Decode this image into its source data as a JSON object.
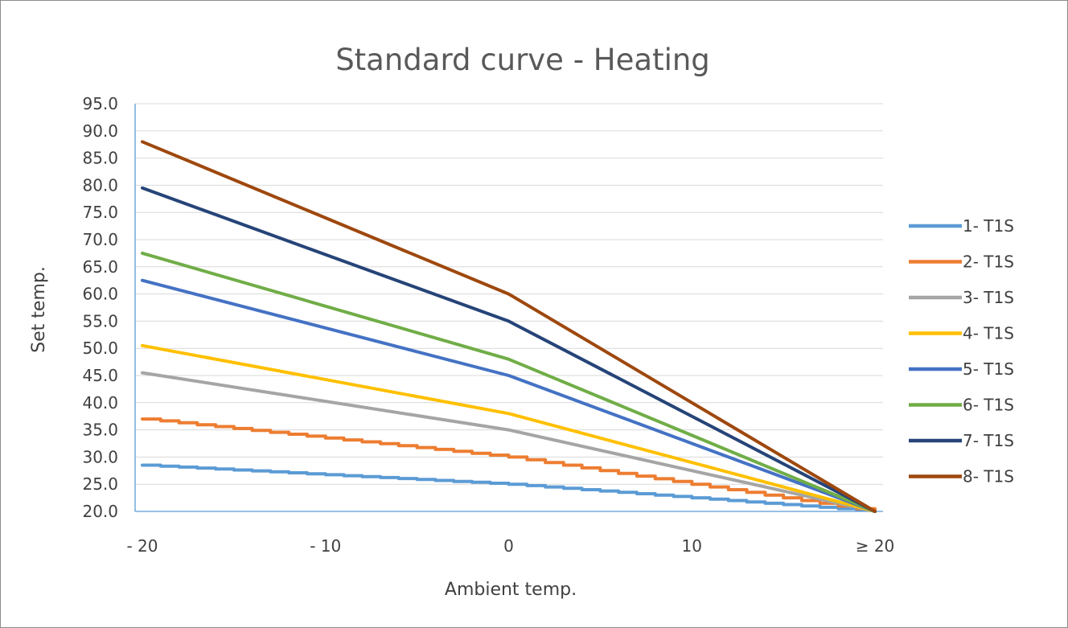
{
  "chart_data": {
    "type": "line",
    "title": "Standard curve -  Heating",
    "xlabel": "Ambient temp.",
    "ylabel": "Set temp.",
    "xlim": [
      -20,
      20
    ],
    "ylim": [
      20.0,
      95.0
    ],
    "x_ticks": [
      {
        "value": -20,
        "label": "- 20"
      },
      {
        "value": -10,
        "label": "- 10"
      },
      {
        "value": 0,
        "label": "0"
      },
      {
        "value": 10,
        "label": "10"
      },
      {
        "value": 20,
        "label": "≥ 20"
      }
    ],
    "y_ticks": [
      "20.0",
      "25.0",
      "30.0",
      "35.0",
      "40.0",
      "45.0",
      "50.0",
      "55.0",
      "60.0",
      "65.0",
      "70.0",
      "75.0",
      "80.0",
      "85.0",
      "90.0",
      "95.0"
    ],
    "grid": true,
    "legend_position": "right",
    "series": [
      {
        "name": "1- T1S",
        "color": "#5b9bd5",
        "stepped": true,
        "points": [
          [
            -20,
            28.5
          ],
          [
            0,
            25.0
          ],
          [
            20,
            20.0
          ]
        ]
      },
      {
        "name": "2- T1S",
        "color": "#ed7d31",
        "stepped": true,
        "points": [
          [
            -20,
            37.0
          ],
          [
            0,
            30.0
          ],
          [
            20,
            20.0
          ]
        ]
      },
      {
        "name": "3- T1S",
        "color": "#a5a5a5",
        "stepped": false,
        "points": [
          [
            -20,
            45.5
          ],
          [
            0,
            35.0
          ],
          [
            20,
            20.0
          ]
        ]
      },
      {
        "name": "4- T1S",
        "color": "#ffc000",
        "stepped": false,
        "points": [
          [
            -20,
            50.5
          ],
          [
            0,
            38.0
          ],
          [
            20,
            20.0
          ]
        ]
      },
      {
        "name": "5- T1S",
        "color": "#4472c4",
        "stepped": false,
        "points": [
          [
            -20,
            62.5
          ],
          [
            0,
            45.0
          ],
          [
            20,
            20.0
          ]
        ]
      },
      {
        "name": "6- T1S",
        "color": "#70ad47",
        "stepped": false,
        "points": [
          [
            -20,
            67.5
          ],
          [
            0,
            48.0
          ],
          [
            20,
            20.0
          ]
        ]
      },
      {
        "name": "7- T1S",
        "color": "#264478",
        "stepped": false,
        "points": [
          [
            -20,
            79.5
          ],
          [
            0,
            55.0
          ],
          [
            20,
            20.0
          ]
        ]
      },
      {
        "name": "8- T1S",
        "color": "#9e480e",
        "stepped": false,
        "points": [
          [
            -20,
            88.0
          ],
          [
            0,
            60.0
          ],
          [
            20,
            20.0
          ]
        ]
      }
    ]
  }
}
